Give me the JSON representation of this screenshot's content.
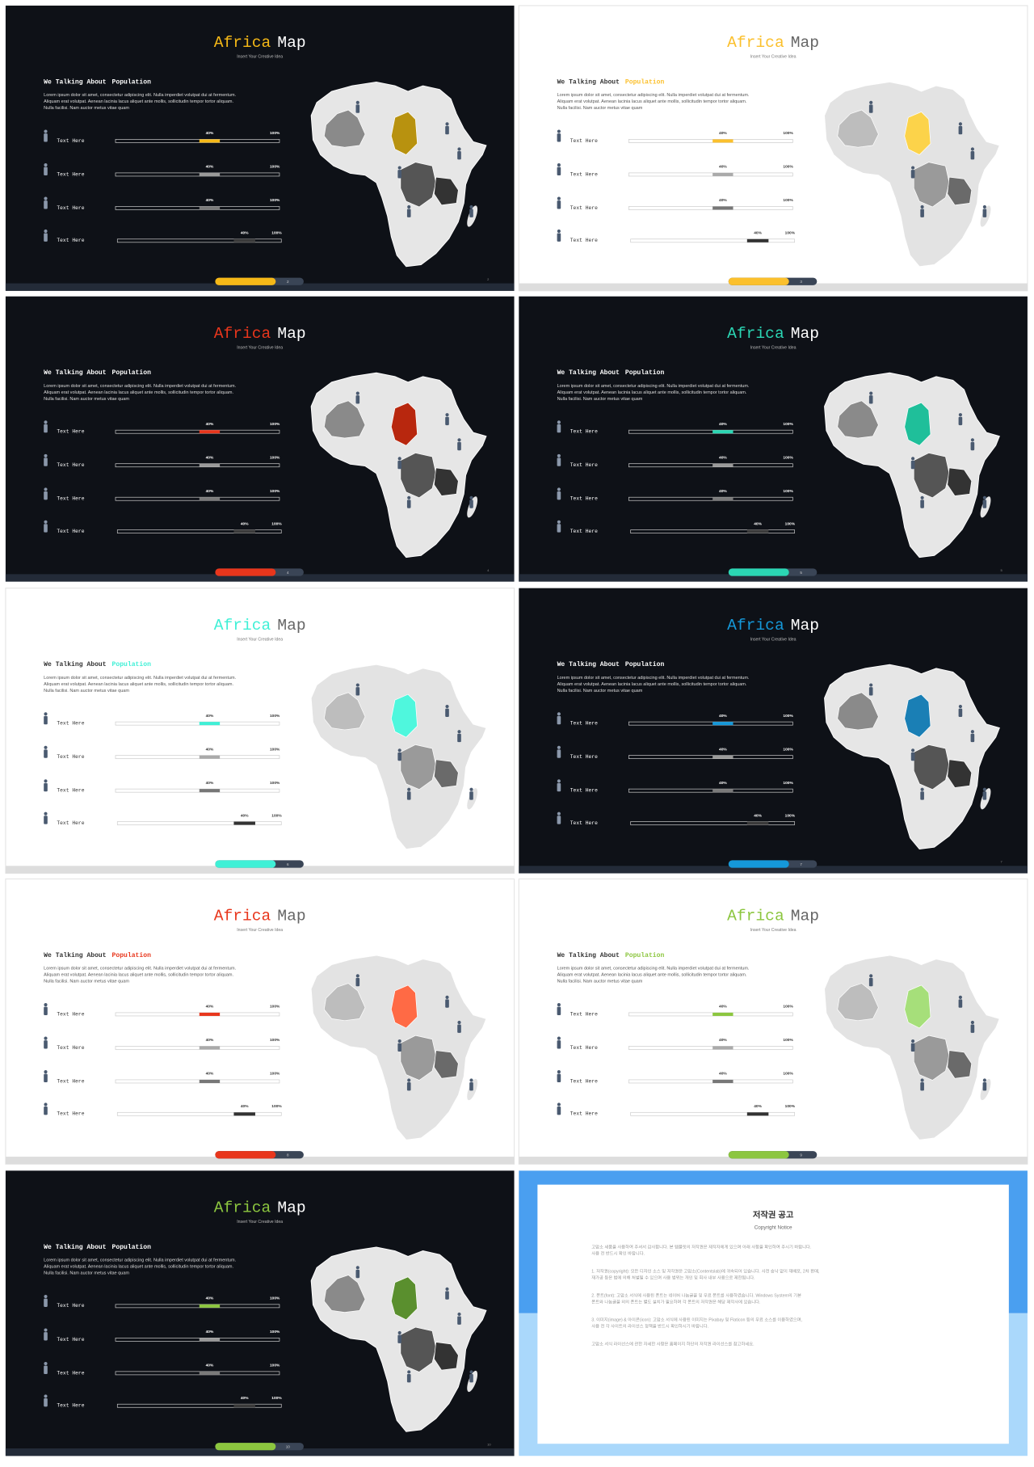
{
  "template": {
    "title_a": "Africa",
    "title_b": "Map",
    "subtitle": "Insert Your Creative Idea",
    "heading": "We Talking About",
    "heading_accent": "Population",
    "body": [
      "Lorem ipsum dolor sit amet, consectetur adipiscing elit. Nulla imperdiet volutpat dui at fermentum.",
      "Aliquam erat volutpat. Aenean lacinia lacus aliquet ante mollis, sollicitudin tempor tortor aliquam.",
      "Nulla facilisi. Nam auctor metus vitae quam"
    ],
    "rows": [
      {
        "label": "Text Here",
        "value": "40%",
        "max": "100%"
      },
      {
        "label": "Text Here",
        "value": "40%",
        "max": "100%"
      },
      {
        "label": "Text Here",
        "value": "40%",
        "max": "100%"
      },
      {
        "label": "Text Here",
        "value": "40%",
        "max": "100%"
      }
    ]
  },
  "slides": [
    {
      "theme": "dark",
      "accent": "#f5b817",
      "region": "#b8920f",
      "page": 2
    },
    {
      "theme": "light",
      "accent": "#fbc02d",
      "region": "#fcd34a",
      "page": 3
    },
    {
      "theme": "dark",
      "accent": "#e8361c",
      "region": "#b8270e",
      "page": 4
    },
    {
      "theme": "dark",
      "accent": "#2bd6b4",
      "region": "#1fbf9a",
      "page": 5
    },
    {
      "theme": "light",
      "accent": "#3ff0d6",
      "region": "#4ff7dd",
      "page": 6
    },
    {
      "theme": "dark",
      "accent": "#1598d9",
      "region": "#1a7fb5",
      "page": 7
    },
    {
      "theme": "light",
      "accent": "#e8361c",
      "region": "#ff6a45",
      "page": 8
    },
    {
      "theme": "light",
      "accent": "#8cc63f",
      "region": "#a6df7a",
      "page": 9
    },
    {
      "theme": "dark",
      "accent": "#8cc63f",
      "region": "#5a8f2e",
      "page": 10
    }
  ],
  "notice": {
    "title": "저작권 공고",
    "subtitle": "Copyright Notice",
    "paragraphs": [
      [
        "고맙소 세품을 사용하여 주셔서 감사합니다. 본 템플릿의 저작권은 제작자에게 있으며 아래 사항을 확인하여 주시기 바랍니다.",
        "사용 전 반드시 확인 바랍니다."
      ],
      [
        "1. 저작권(copyright): 모든 디자인 소스 및 저작권은 고맙소(Contentslab)에 귀속되어 있습니다. 사전 승낙 없이 재배포, 2차 판매,",
        "재가공 등은 법에 의해 처벌될 수 있으며 사용 범위는 개인 및 회사 내부 사용으로 제한됩니다."
      ],
      [
        "2. 폰트(font): 고맙소 서식에 사용된 폰트는 네이버 나눔글꼴 및 무료 폰트를 사용하였습니다. Windows System의 기본",
        "폰트와 나눔글꼴 외의 폰트는 별도 설치가 필요하며 각 폰트의 저작권은 해당 제작사에 있습니다."
      ],
      [
        "3. 이미지(image) & 아이콘(icon): 고맙소 서식에 사용된 이미지는 Pixabay 및 Flaticon 등의 무료 소스를 이용하였으며,",
        "사용 전 각 사이트의 라이선스 정책을 반드시 확인하시기 바랍니다."
      ],
      [
        "고맙소 서식 라이선스에 관한 자세한 사항은 홈페이지 하단의 저작권 라이선스를 참고하세요."
      ]
    ]
  }
}
